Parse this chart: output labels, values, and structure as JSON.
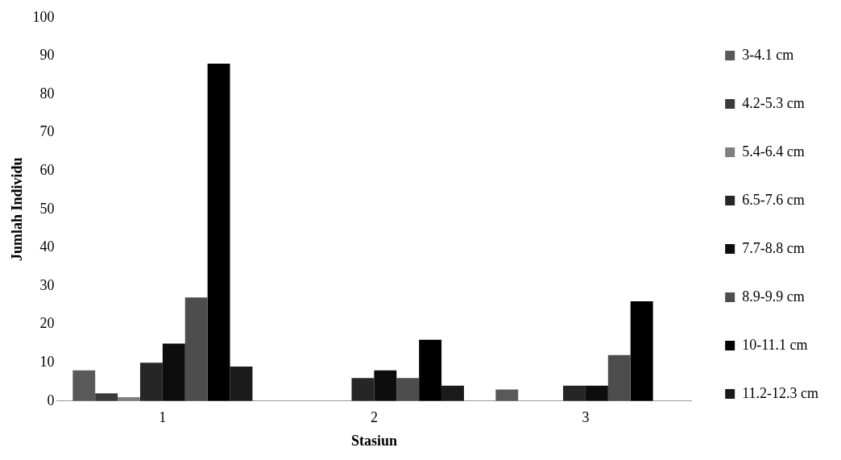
{
  "chart_data": {
    "type": "bar",
    "xlabel": "Stasiun",
    "ylabel": "Jumlah Individu",
    "categories": [
      "1",
      "2",
      "3"
    ],
    "series": [
      {
        "name": "3-4.1 cm",
        "color": "#595959",
        "values": [
          8,
          0,
          3
        ]
      },
      {
        "name": "4.2-5.3 cm",
        "color": "#3a3a3a",
        "values": [
          2,
          0,
          0
        ]
      },
      {
        "name": "5.4-6.4 cm",
        "color": "#7f7f7f",
        "values": [
          1,
          0,
          0
        ]
      },
      {
        "name": "6.5-7.6 cm",
        "color": "#262626",
        "values": [
          10,
          6,
          4
        ]
      },
      {
        "name": "7.7-8.8 cm",
        "color": "#0d0d0d",
        "values": [
          15,
          8,
          4
        ]
      },
      {
        "name": "8.9-9.9 cm",
        "color": "#4d4d4d",
        "values": [
          27,
          6,
          12
        ]
      },
      {
        "name": "10-11.1 cm",
        "color": "#000000",
        "values": [
          88,
          16,
          26
        ]
      },
      {
        "name": "11.2-12.3 cm",
        "color": "#1a1a1a",
        "values": [
          9,
          4,
          0
        ]
      }
    ],
    "ylim": [
      0,
      100
    ],
    "yticks": [
      0,
      10,
      20,
      30,
      40,
      50,
      60,
      70,
      80,
      90,
      100
    ],
    "grid": false,
    "legend": "right"
  }
}
